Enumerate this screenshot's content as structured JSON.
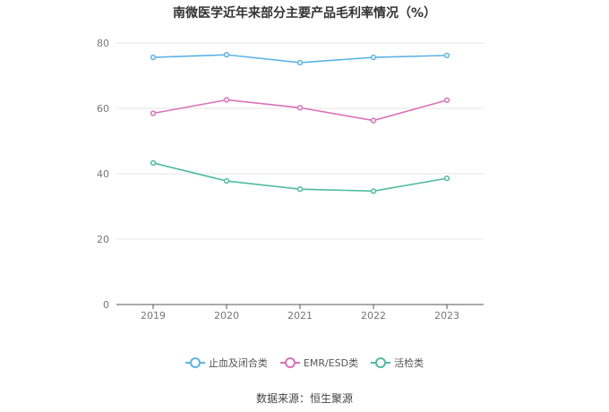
{
  "chart_data": {
    "type": "line",
    "title": "南微医学近年来部分主要产品毛利率情况（%）",
    "categories": [
      "2019",
      "2020",
      "2021",
      "2022",
      "2023"
    ],
    "ylim": [
      0,
      80
    ],
    "yticks": [
      0,
      20,
      40,
      60,
      80
    ],
    "grid": true,
    "legend_position": "bottom",
    "series": [
      {
        "name": "止血及闭合类",
        "color": "#5ab4e6",
        "values": [
          75.6,
          76.4,
          74.0,
          75.6,
          76.2
        ]
      },
      {
        "name": "EMR/ESD类",
        "color": "#d971b8",
        "values": [
          58.5,
          62.6,
          60.2,
          56.3,
          62.5
        ]
      },
      {
        "name": "活检类",
        "color": "#4dbd9e",
        "values": [
          43.3,
          37.8,
          35.3,
          34.7,
          38.6
        ]
      }
    ]
  },
  "source": "数据来源：恒生聚源"
}
